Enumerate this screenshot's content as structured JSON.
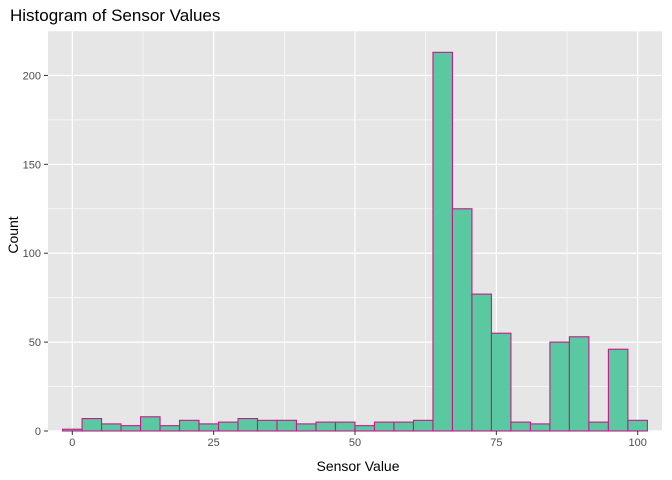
{
  "chart_data": {
    "type": "bar",
    "title": "Histogram of Sensor Values",
    "xlabel": "Sensor Value",
    "ylabel": "Count",
    "xlim": [
      -4.3,
      104.3
    ],
    "ylim": [
      0,
      225
    ],
    "x_ticks": [
      0,
      25,
      50,
      75,
      100
    ],
    "y_ticks": [
      0,
      50,
      100,
      150,
      200
    ],
    "bin_width": 3.448,
    "bin_start": -1.724,
    "counts": [
      1,
      7,
      4,
      3,
      8,
      3,
      6,
      4,
      5,
      7,
      6,
      6,
      4,
      5,
      5,
      3,
      5,
      5,
      6,
      213,
      125,
      77,
      55,
      5,
      4,
      50,
      53,
      5,
      46,
      6
    ],
    "grid": true,
    "colors": {
      "panel": "#e6e6e6",
      "grid_major": "#ffffff",
      "bar_fill": "#5ac8a0",
      "bar_stroke": "#c51b8a",
      "tick_text": "#4d4d4d"
    }
  }
}
